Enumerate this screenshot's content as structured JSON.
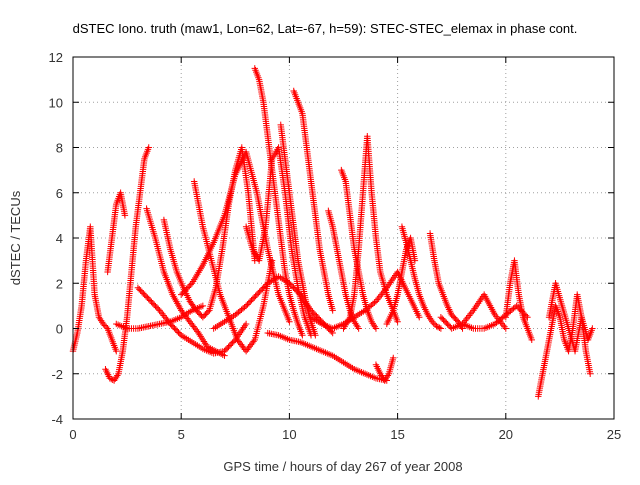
{
  "chart_data": {
    "type": "scatter",
    "title": "dSTEC Iono. truth (maw1, Lon=62, Lat=-67, h=59): STEC-STEC_elemax in phase cont.",
    "xlabel": "GPS time / hours of day 267 of year 2008",
    "ylabel": "dSTEC  / TECUs",
    "xlim": [
      0,
      25
    ],
    "ylim": [
      -4,
      12
    ],
    "xticks": [
      "0",
      "5",
      "10",
      "15",
      "20",
      "25"
    ],
    "yticks": [
      "-4",
      "-2",
      "0",
      "2",
      "4",
      "6",
      "8",
      "10",
      "12"
    ],
    "grid": true,
    "marker": "+",
    "color": "#ff0000",
    "series": [
      {
        "x": [
          0.0,
          0.2,
          0.4,
          0.6,
          0.8,
          1.0,
          1.2,
          1.4,
          1.6,
          1.8,
          2.0
        ],
        "y": [
          -1.0,
          -0.2,
          1.0,
          3.0,
          4.5,
          1.5,
          0.5,
          0.2,
          0.0,
          -0.5,
          -1.0
        ]
      },
      {
        "x": [
          1.5,
          1.7,
          1.9,
          2.1,
          2.3,
          2.5,
          2.7,
          2.9,
          3.1,
          3.3,
          3.5
        ],
        "y": [
          -1.8,
          -2.2,
          -2.3,
          -2.0,
          -1.0,
          0.5,
          2.5,
          4.5,
          6.0,
          7.5,
          8.0
        ]
      },
      {
        "x": [
          1.6,
          1.8,
          2.0,
          2.2,
          2.4
        ],
        "y": [
          2.5,
          4.0,
          5.5,
          6.0,
          5.0
        ]
      },
      {
        "x": [
          3.4,
          3.8,
          4.2,
          4.6,
          5.0,
          5.4,
          5.8,
          6.2,
          6.6,
          7.0
        ],
        "y": [
          5.3,
          4.0,
          2.5,
          1.5,
          0.8,
          0.3,
          -0.2,
          -0.8,
          -1.0,
          -1.2
        ]
      },
      {
        "x": [
          4.2,
          4.5,
          4.8,
          5.1,
          5.4,
          5.7,
          6.0,
          6.3,
          6.6,
          6.9,
          7.2,
          7.5,
          7.8,
          8.1,
          8.4
        ],
        "y": [
          4.8,
          3.5,
          2.5,
          1.8,
          1.2,
          0.8,
          0.5,
          0.8,
          1.8,
          3.5,
          5.5,
          7.0,
          8.0,
          6.0,
          3.0
        ]
      },
      {
        "x": [
          5.0,
          5.5,
          6.0,
          6.5,
          7.0,
          7.5,
          8.0,
          8.5,
          9.0,
          9.5,
          10.0
        ],
        "y": [
          1.5,
          2.0,
          2.8,
          3.8,
          5.0,
          6.8,
          7.8,
          6.0,
          3.5,
          1.5,
          0.3
        ]
      },
      {
        "x": [
          5.6,
          6.0,
          6.4,
          6.8,
          7.2,
          7.6,
          8.0,
          8.4,
          8.8,
          9.2
        ],
        "y": [
          6.5,
          4.5,
          3.0,
          1.5,
          0.5,
          -0.5,
          -1.0,
          -0.5,
          1.0,
          3.0
        ]
      },
      {
        "x": [
          3.0,
          3.5,
          4.0,
          4.5,
          5.0,
          5.5,
          6.0,
          6.5,
          7.0,
          7.5,
          8.0
        ],
        "y": [
          1.8,
          1.3,
          0.8,
          0.2,
          -0.3,
          -0.6,
          -0.9,
          -1.1,
          -1.0,
          -0.5,
          0.2
        ]
      },
      {
        "x": [
          2.0,
          2.5,
          3.0,
          3.5,
          4.0,
          4.5,
          5.0,
          5.5,
          6.0
        ],
        "y": [
          0.2,
          0.0,
          0.0,
          0.1,
          0.2,
          0.3,
          0.5,
          0.8,
          1.0
        ]
      },
      {
        "x": [
          6.5,
          7.0,
          7.5,
          8.0,
          8.5,
          9.0,
          9.5,
          10.0,
          10.5,
          11.0,
          11.5,
          12.0
        ],
        "y": [
          0.0,
          0.3,
          0.6,
          1.0,
          1.5,
          2.0,
          2.3,
          2.0,
          1.5,
          0.8,
          0.3,
          -0.2
        ]
      },
      {
        "x": [
          8.4,
          8.6,
          8.8,
          9.0,
          9.2,
          9.4,
          9.6,
          9.8,
          10.0,
          10.2,
          10.4,
          10.6
        ],
        "y": [
          11.5,
          11.0,
          10.0,
          8.5,
          7.0,
          5.5,
          4.0,
          2.5,
          1.5,
          0.8,
          0.2,
          -0.3
        ]
      },
      {
        "x": [
          8.0,
          8.3,
          8.6,
          8.9,
          9.2,
          9.5,
          9.8,
          10.1,
          10.4,
          10.7,
          11.0
        ],
        "y": [
          4.5,
          3.5,
          3.0,
          4.5,
          7.5,
          8.0,
          6.0,
          3.5,
          1.8,
          0.5,
          -0.3
        ]
      },
      {
        "x": [
          9.6,
          9.8,
          10.0,
          10.2,
          10.4,
          10.6,
          10.8,
          11.0,
          11.2
        ],
        "y": [
          9.0,
          7.5,
          6.0,
          4.5,
          3.0,
          2.0,
          1.0,
          0.3,
          -0.3
        ]
      },
      {
        "x": [
          10.2,
          10.4,
          10.6,
          10.8,
          11.0,
          11.2,
          11.4,
          11.6,
          11.8,
          12.0
        ],
        "y": [
          10.5,
          10.0,
          9.5,
          8.0,
          6.5,
          5.0,
          3.5,
          2.5,
          1.5,
          0.8
        ]
      },
      {
        "x": [
          9.0,
          9.5,
          10.0,
          10.5,
          11.0,
          11.5,
          12.0,
          12.5,
          13.0,
          13.5,
          14.0,
          14.5
        ],
        "y": [
          -0.2,
          -0.3,
          -0.5,
          -0.6,
          -0.8,
          -1.0,
          -1.2,
          -1.5,
          -1.8,
          -2.0,
          -2.2,
          -2.3
        ]
      },
      {
        "x": [
          14.0,
          14.2,
          14.4,
          14.6,
          14.8
        ],
        "y": [
          -1.6,
          -2.0,
          -2.3,
          -2.0,
          -1.3
        ]
      },
      {
        "x": [
          11.0,
          11.5,
          12.0,
          12.5,
          13.0,
          13.5,
          14.0,
          14.5,
          15.0,
          15.5,
          16.0
        ],
        "y": [
          0.5,
          0.2,
          0.0,
          0.2,
          0.5,
          0.8,
          1.2,
          1.8,
          2.5,
          1.5,
          0.5
        ]
      },
      {
        "x": [
          11.8,
          12.0,
          12.2,
          12.4,
          12.6,
          12.8,
          13.0,
          13.2
        ],
        "y": [
          5.2,
          4.5,
          3.5,
          2.5,
          1.5,
          0.8,
          0.3,
          0.0
        ]
      },
      {
        "x": [
          12.4,
          12.6,
          12.8,
          13.0,
          13.2,
          13.4,
          13.6,
          13.8,
          14.0
        ],
        "y": [
          7.0,
          6.5,
          5.0,
          3.5,
          2.5,
          1.5,
          0.8,
          0.3,
          0.0
        ]
      },
      {
        "x": [
          12.5,
          12.8,
          13.0,
          13.2,
          13.4,
          13.6,
          13.8,
          14.0,
          14.2,
          14.5,
          14.8,
          15.0
        ],
        "y": [
          0.0,
          0.5,
          1.5,
          3.5,
          6.0,
          8.5,
          6.0,
          4.0,
          2.5,
          1.5,
          0.8,
          0.3
        ]
      },
      {
        "x": [
          15.2,
          15.4,
          15.6,
          15.8,
          16.0,
          16.2,
          16.4,
          16.6,
          16.8,
          17.0
        ],
        "y": [
          4.5,
          3.8,
          3.0,
          2.2,
          1.5,
          1.0,
          0.6,
          0.3,
          0.1,
          0.0
        ]
      },
      {
        "x": [
          14.5,
          14.8,
          15.0,
          15.2,
          15.4,
          15.6,
          15.8
        ],
        "y": [
          0.2,
          0.8,
          1.5,
          2.5,
          3.5,
          4.0,
          3.0
        ]
      },
      {
        "x": [
          16.5,
          16.7,
          16.9,
          17.1,
          17.3,
          17.5,
          17.8,
          18.0
        ],
        "y": [
          4.2,
          3.0,
          2.0,
          1.5,
          1.0,
          0.6,
          0.3,
          0.0
        ]
      },
      {
        "x": [
          17.0,
          17.5,
          18.0,
          18.5,
          19.0,
          19.5,
          20.0
        ],
        "y": [
          0.5,
          0.0,
          0.2,
          0.8,
          1.5,
          0.6,
          0.0
        ]
      },
      {
        "x": [
          18.0,
          18.5,
          19.0,
          19.5,
          20.0,
          20.5,
          21.0
        ],
        "y": [
          0.2,
          0.0,
          0.0,
          0.2,
          0.6,
          1.0,
          0.5
        ]
      },
      {
        "x": [
          20.0,
          20.2,
          20.4,
          20.6,
          20.8,
          21.0,
          21.2
        ],
        "y": [
          0.5,
          2.0,
          3.0,
          1.5,
          0.5,
          0.0,
          -0.5
        ]
      },
      {
        "x": [
          21.5,
          21.7,
          21.9,
          22.1,
          22.3,
          22.5,
          22.7,
          22.9,
          23.1,
          23.3,
          23.5,
          23.7,
          23.9
        ],
        "y": [
          -3.0,
          -2.0,
          -1.0,
          0.0,
          1.0,
          0.5,
          -0.5,
          -1.0,
          0.0,
          1.5,
          0.5,
          -1.0,
          -2.0
        ]
      },
      {
        "x": [
          22.0,
          22.3,
          22.6,
          22.9,
          23.2,
          23.5,
          23.8,
          24.0
        ],
        "y": [
          0.5,
          2.0,
          1.0,
          0.0,
          -1.0,
          0.5,
          -0.5,
          0.0
        ]
      }
    ]
  }
}
